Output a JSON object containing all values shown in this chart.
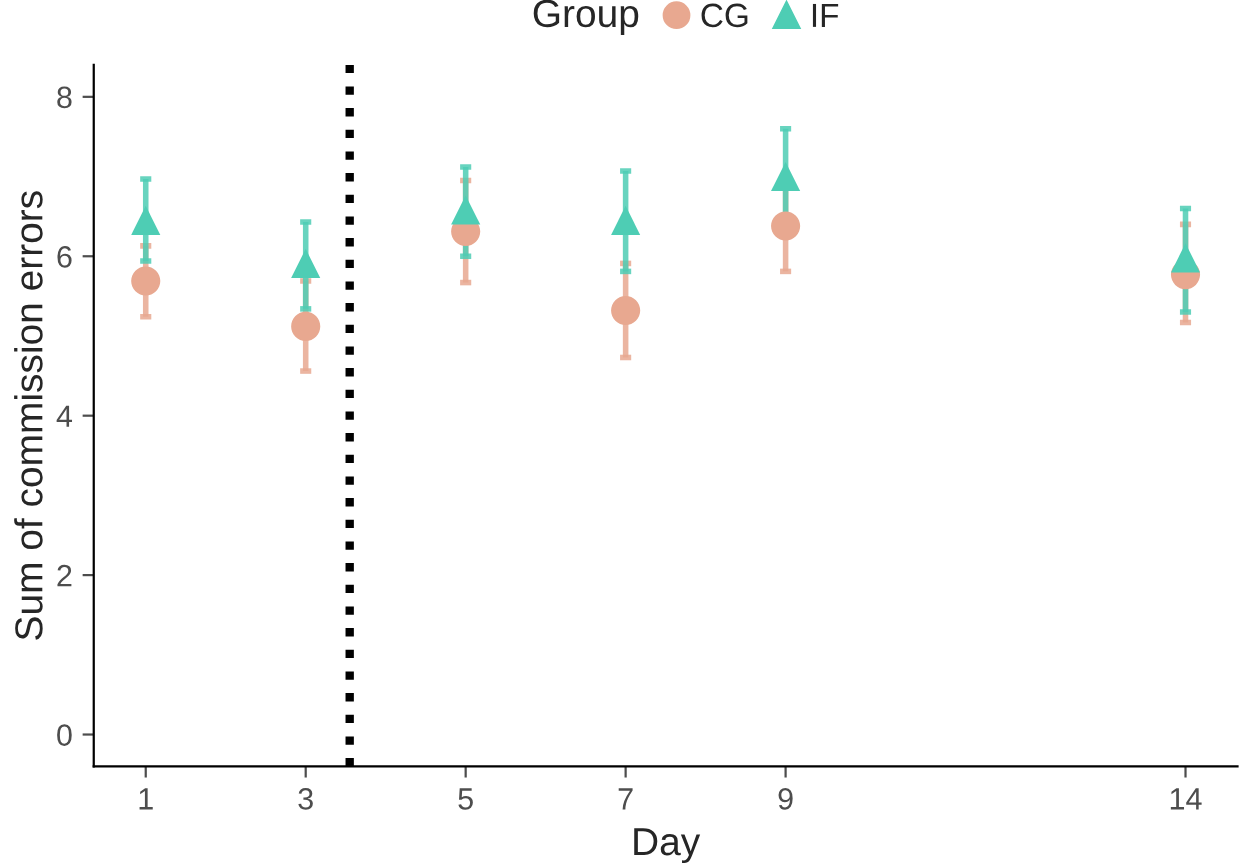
{
  "chart_data": {
    "type": "scatter",
    "xlabel": "Day",
    "ylabel": "Sum of commission errors",
    "legend_title": "Group",
    "legend": "top",
    "x": [
      1,
      3,
      5,
      7,
      9,
      14
    ],
    "series": [
      {
        "name": "CG",
        "color": "#e8a890",
        "marker": "circle",
        "values": [
          5.69,
          5.12,
          6.31,
          5.32,
          6.38,
          5.77
        ],
        "errors": [
          [
            5.24,
            6.13
          ],
          [
            4.56,
            5.69
          ],
          [
            5.67,
            6.95
          ],
          [
            4.73,
            5.91
          ],
          [
            5.81,
            6.97
          ],
          [
            5.17,
            6.4
          ]
        ]
      },
      {
        "name": "IF",
        "color": "#4ecdb4",
        "marker": "triangle",
        "values": [
          6.45,
          5.91,
          6.58,
          6.45,
          7.0,
          5.98
        ],
        "errors": [
          [
            5.94,
            6.97
          ],
          [
            5.34,
            6.43
          ],
          [
            6.0,
            7.12
          ],
          [
            5.81,
            7.07
          ],
          [
            6.28,
            7.6
          ],
          [
            5.3,
            6.6
          ]
        ]
      }
    ],
    "xlim": [
      0.35,
      14.65
    ],
    "xticks": [
      1,
      3,
      5,
      7,
      9,
      14
    ],
    "ylim": [
      -0.4,
      8.4
    ],
    "yticks": [
      0,
      2,
      4,
      6,
      8
    ],
    "grid": false,
    "ref_lines": [
      {
        "axis": "x",
        "value": 3.55,
        "color": "#000000",
        "line_style": "dotted"
      }
    ]
  }
}
